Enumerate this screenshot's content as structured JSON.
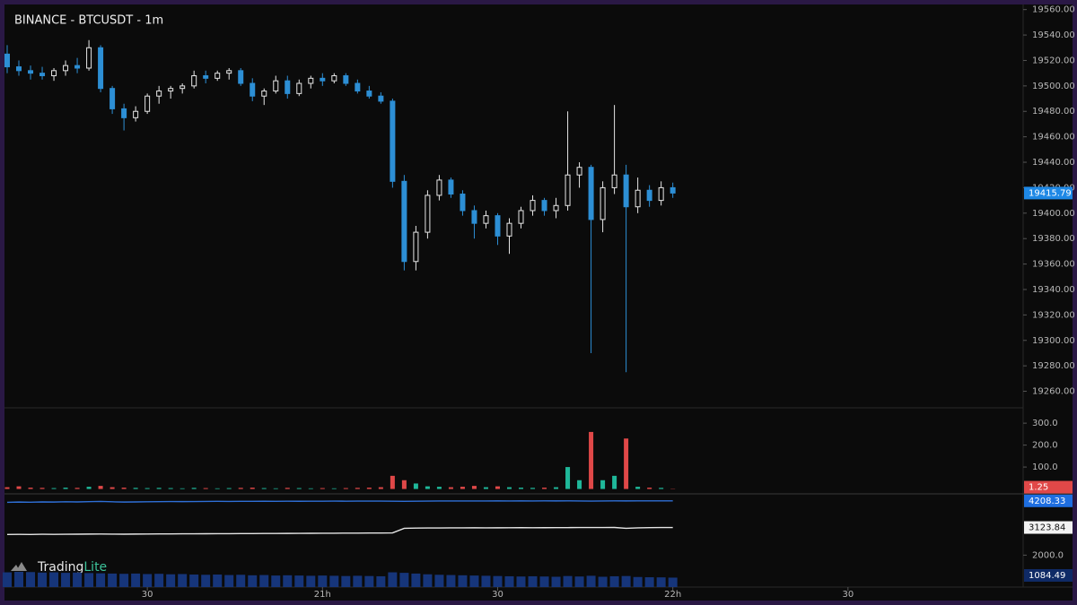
{
  "header": {
    "title": "BINANCE - BTCUSDT - 1m",
    "brand": [
      "Trading",
      "Lite"
    ]
  },
  "chart_data": [
    {
      "type": "candlestick",
      "x": [
        0,
        2,
        4,
        6,
        8,
        10,
        12,
        14,
        16,
        18,
        20,
        22,
        24,
        26,
        28,
        30,
        32,
        34,
        36,
        38,
        40,
        42,
        44,
        46,
        48,
        50,
        52,
        54,
        56,
        58,
        60,
        62,
        64,
        66,
        68,
        70,
        72,
        74,
        76,
        78,
        80,
        82,
        84,
        86,
        88,
        90,
        92,
        94,
        96,
        98,
        100,
        102,
        104,
        106,
        108,
        110,
        112,
        114
      ],
      "open": [
        19525,
        19515,
        19512,
        19510,
        19508,
        19512,
        19516,
        19514,
        19530,
        19498,
        19482,
        19475,
        19480,
        19492,
        19496,
        19498,
        19500,
        19508,
        19506,
        19510,
        19512,
        19502,
        19492,
        19496,
        19504,
        19494,
        19502,
        19506,
        19504,
        19508,
        19502,
        19496,
        19492,
        19488,
        19425,
        19362,
        19385,
        19414,
        19426,
        19415,
        19402,
        19392,
        19398,
        19382,
        19392,
        19402,
        19410,
        19402,
        19406,
        19430,
        19436,
        19395,
        19420,
        19430,
        19405,
        19418,
        19410,
        19420
      ],
      "high": [
        19532,
        19520,
        19516,
        19515,
        19514,
        19520,
        19522,
        19536,
        19532,
        19500,
        19486,
        19484,
        19494,
        19500,
        19500,
        19502,
        19512,
        19512,
        19512,
        19514,
        19514,
        19506,
        19498,
        19508,
        19508,
        19505,
        19508,
        19510,
        19510,
        19510,
        19505,
        19500,
        19495,
        19490,
        19430,
        19390,
        19418,
        19430,
        19428,
        19418,
        19406,
        19402,
        19400,
        19396,
        19405,
        19414,
        19412,
        19412,
        19480,
        19440,
        19438,
        19425,
        19485,
        19438,
        19428,
        19422,
        19425,
        19424
      ],
      "low": [
        19510,
        19508,
        19505,
        19505,
        19504,
        19508,
        19510,
        19512,
        19495,
        19478,
        19465,
        19472,
        19478,
        19486,
        19490,
        19494,
        19498,
        19502,
        19504,
        19505,
        19500,
        19488,
        19485,
        19494,
        19490,
        19492,
        19498,
        19500,
        19502,
        19500,
        19494,
        19490,
        19486,
        19420,
        19355,
        19355,
        19380,
        19410,
        19412,
        19398,
        19380,
        19388,
        19375,
        19368,
        19388,
        19398,
        19398,
        19396,
        19402,
        19420,
        19290,
        19385,
        19415,
        19275,
        19400,
        19405,
        19406,
        19412
      ],
      "close": [
        19515,
        19512,
        19510,
        19508,
        19512,
        19516,
        19514,
        19530,
        19498,
        19482,
        19475,
        19480,
        19492,
        19496,
        19498,
        19500,
        19508,
        19506,
        19510,
        19512,
        19502,
        19492,
        19496,
        19504,
        19494,
        19502,
        19506,
        19504,
        19508,
        19502,
        19496,
        19492,
        19488,
        19425,
        19362,
        19385,
        19414,
        19426,
        19415,
        19402,
        19392,
        19398,
        19382,
        19392,
        19402,
        19410,
        19402,
        19406,
        19430,
        19436,
        19395,
        19420,
        19430,
        19405,
        19418,
        19410,
        19420,
        19415.79
      ],
      "up_color": "#e6e6e6",
      "down_color": "#2d8fd5",
      "xlim": [
        0,
        174
      ],
      "ylim": [
        19247,
        19564
      ],
      "yticks": [
        {
          "value": 19560,
          "label": "19560.00"
        },
        {
          "value": 19540,
          "label": "19540.00"
        },
        {
          "value": 19520,
          "label": "19520.00"
        },
        {
          "value": 19500,
          "label": "19500.00"
        },
        {
          "value": 19480,
          "label": "19480.00"
        },
        {
          "value": 19460,
          "label": "19460.00"
        },
        {
          "value": 19440,
          "label": "19440.00"
        },
        {
          "value": 19420,
          "label": "19420.00"
        },
        {
          "value": 19400,
          "label": "19400.00"
        },
        {
          "value": 19380,
          "label": "19380.00"
        },
        {
          "value": 19360,
          "label": "19360.00"
        },
        {
          "value": 19340,
          "label": "19340.00"
        },
        {
          "value": 19320,
          "label": "19320.00"
        },
        {
          "value": 19300,
          "label": "19300.00"
        },
        {
          "value": 19280,
          "label": "19280.00"
        },
        {
          "value": 19260,
          "label": "19260.00"
        }
      ],
      "last_color": "#1e88e5"
    },
    {
      "type": "bar",
      "x": [
        0,
        2,
        4,
        6,
        8,
        10,
        12,
        14,
        16,
        18,
        20,
        22,
        24,
        26,
        28,
        30,
        32,
        34,
        36,
        38,
        40,
        42,
        44,
        46,
        48,
        50,
        52,
        54,
        56,
        58,
        60,
        62,
        64,
        66,
        68,
        70,
        72,
        74,
        76,
        78,
        80,
        82,
        84,
        86,
        88,
        90,
        92,
        94,
        96,
        98,
        100,
        102,
        104,
        106,
        108,
        110,
        112,
        114
      ],
      "values": [
        8,
        12,
        6,
        5,
        4,
        6,
        5,
        10,
        14,
        8,
        6,
        5,
        4,
        5,
        4,
        3,
        5,
        4,
        3,
        4,
        5,
        6,
        4,
        3,
        5,
        4,
        3,
        4,
        3,
        4,
        5,
        6,
        8,
        60,
        40,
        25,
        12,
        10,
        8,
        10,
        14,
        8,
        12,
        8,
        6,
        5,
        6,
        8,
        100,
        40,
        260,
        40,
        60,
        230,
        10,
        6,
        5,
        1.25
      ],
      "up_color": "#1fb89a",
      "down_color": "#e04848",
      "xlim": [
        0,
        174
      ],
      "ylim": [
        -10,
        370
      ],
      "yticks": [
        {
          "value": 100,
          "label": "100.0"
        },
        {
          "value": 200,
          "label": "200.0"
        },
        {
          "value": 300,
          "label": "300.0"
        }
      ]
    },
    {
      "type": "line",
      "x": [
        0,
        2,
        4,
        6,
        8,
        10,
        12,
        14,
        16,
        18,
        20,
        22,
        24,
        26,
        28,
        30,
        32,
        34,
        36,
        38,
        40,
        42,
        44,
        46,
        48,
        50,
        52,
        54,
        56,
        58,
        60,
        62,
        64,
        66,
        68,
        70,
        72,
        74,
        76,
        78,
        80,
        82,
        84,
        86,
        88,
        90,
        92,
        94,
        96,
        98,
        100,
        102,
        104,
        106,
        108,
        110,
        112,
        114
      ],
      "series": [
        {
          "color": "#2f6fd6",
          "style": "line",
          "values": [
            4150,
            4160,
            4155,
            4165,
            4160,
            4170,
            4165,
            4175,
            4185,
            4170,
            4160,
            4165,
            4170,
            4175,
            4180,
            4178,
            4182,
            4185,
            4188,
            4186,
            4190,
            4188,
            4192,
            4190,
            4194,
            4192,
            4196,
            4195,
            4198,
            4196,
            4198,
            4200,
            4198,
            4196,
            4190,
            4195,
            4200,
            4202,
            4204,
            4202,
            4205,
            4203,
            4206,
            4204,
            4206,
            4205,
            4207,
            4206,
            4208,
            4204,
            4200,
            4205,
            4207,
            4206,
            4208,
            4207,
            4208,
            4208.33
          ]
        },
        {
          "color": "#e6e6e6",
          "style": "line",
          "values": [
            2840,
            2845,
            2842,
            2848,
            2846,
            2850,
            2852,
            2856,
            2858,
            2855,
            2852,
            2856,
            2860,
            2862,
            2864,
            2866,
            2868,
            2870,
            2872,
            2874,
            2876,
            2878,
            2880,
            2882,
            2884,
            2886,
            2888,
            2890,
            2892,
            2894,
            2896,
            2898,
            2900,
            2905,
            3090,
            3100,
            3104,
            3106,
            3108,
            3110,
            3112,
            3110,
            3112,
            3114,
            3116,
            3115,
            3116,
            3118,
            3120,
            3122,
            3124,
            3122,
            3125,
            3090,
            3110,
            3120,
            3122,
            3123.84
          ]
        },
        {
          "color": "#16357a",
          "style": "bar",
          "values": [
            1300,
            1320,
            1310,
            1290,
            1300,
            1280,
            1290,
            1270,
            1260,
            1250,
            1240,
            1250,
            1230,
            1240,
            1220,
            1230,
            1210,
            1200,
            1210,
            1190,
            1200,
            1180,
            1190,
            1170,
            1180,
            1170,
            1160,
            1170,
            1160,
            1150,
            1160,
            1150,
            1140,
            1300,
            1280,
            1250,
            1220,
            1200,
            1190,
            1180,
            1170,
            1160,
            1150,
            1140,
            1130,
            1140,
            1130,
            1120,
            1150,
            1130,
            1160,
            1120,
            1140,
            1150,
            1110,
            1100,
            1095,
            1084.49
          ]
        }
      ],
      "last_colors": [
        "#1e6ee0",
        "#f2f2f2",
        "#0f2a66"
      ],
      "xlim": [
        0,
        174
      ],
      "ylim": [
        700,
        4420
      ],
      "yticks": [
        {
          "value": 2000,
          "label": "2000.0"
        }
      ],
      "xticks": [
        {
          "value": 24,
          "label": "30"
        },
        {
          "value": 54,
          "label": "21h"
        },
        {
          "value": 84,
          "label": "30"
        },
        {
          "value": 114,
          "label": "22h"
        },
        {
          "value": 144,
          "label": "30"
        }
      ]
    }
  ]
}
